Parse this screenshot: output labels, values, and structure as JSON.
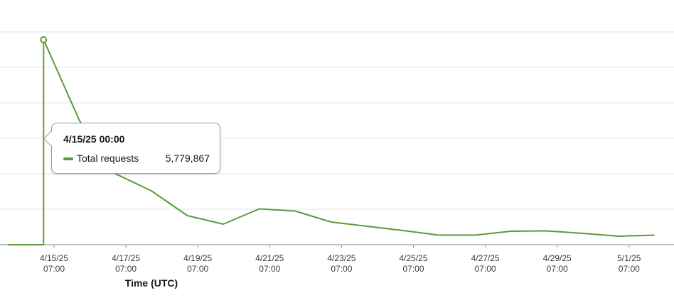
{
  "chart_data": {
    "type": "line",
    "xlabel": "Time (UTC)",
    "x_ticks": [
      {
        "date": "4/15/25",
        "time": "07:00"
      },
      {
        "date": "4/17/25",
        "time": "07:00"
      },
      {
        "date": "4/19/25",
        "time": "07:00"
      },
      {
        "date": "4/21/25",
        "time": "07:00"
      },
      {
        "date": "4/23/25",
        "time": "07:00"
      },
      {
        "date": "4/25/25",
        "time": "07:00"
      },
      {
        "date": "4/27/25",
        "time": "07:00"
      },
      {
        "date": "4/29/25",
        "time": "07:00"
      },
      {
        "date": "5/1/25",
        "time": "07:00"
      }
    ],
    "ylim": [
      0,
      6000000
    ],
    "y_gridlines": [
      0,
      1000000,
      2000000,
      3000000,
      4000000,
      5000000,
      6000000
    ],
    "grid": true,
    "series": [
      {
        "name": "Total requests",
        "color": "#5a9a3c",
        "points": [
          {
            "x": "4/14/25 00:00",
            "y": 0
          },
          {
            "x": "4/15/25 00:00",
            "y": 0
          },
          {
            "x": "4/15/25 00:00",
            "y": 5779867
          },
          {
            "x": "4/16/25 00:00",
            "y": 3500000
          },
          {
            "x": "4/17/25 00:00",
            "y": 2000000
          },
          {
            "x": "4/18/25 00:00",
            "y": 1520000
          },
          {
            "x": "4/19/25 00:00",
            "y": 820000
          },
          {
            "x": "4/20/25 00:00",
            "y": 580000
          },
          {
            "x": "4/21/25 00:00",
            "y": 1010000
          },
          {
            "x": "4/22/25 00:00",
            "y": 950000
          },
          {
            "x": "4/23/25 00:00",
            "y": 640000
          },
          {
            "x": "4/24/25 00:00",
            "y": 520000
          },
          {
            "x": "4/25/25 00:00",
            "y": 400000
          },
          {
            "x": "4/26/25 00:00",
            "y": 270000
          },
          {
            "x": "4/27/25 00:00",
            "y": 270000
          },
          {
            "x": "4/28/25 00:00",
            "y": 380000
          },
          {
            "x": "4/29/25 00:00",
            "y": 390000
          },
          {
            "x": "4/30/25 00:00",
            "y": 320000
          },
          {
            "x": "5/1/25 00:00",
            "y": 240000
          },
          {
            "x": "5/2/25 00:00",
            "y": 270000
          }
        ]
      }
    ],
    "highlight": {
      "x": "4/15/25 00:00",
      "y": 5779867
    }
  },
  "tooltip": {
    "title": "4/15/25 00:00",
    "series_label": "Total requests",
    "value": "5,779,867",
    "swatch_color": "#5a9a3c"
  }
}
